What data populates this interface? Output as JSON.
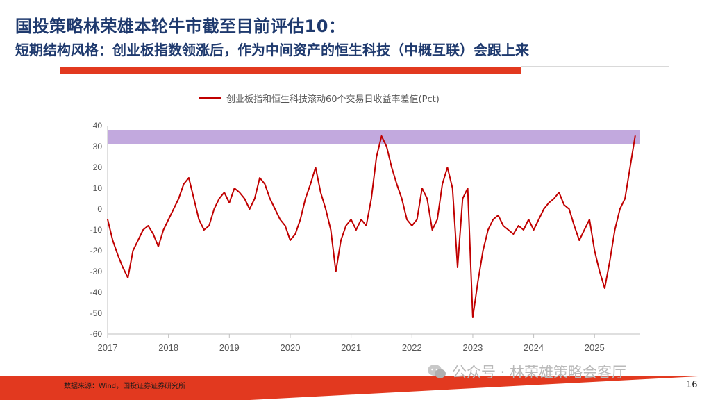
{
  "title": {
    "line1": "国投策略林荣雄本轮牛市截至目前评估10：",
    "line2": "短期结构风格：创业板指数领涨后，作为中间资产的恒生科技（中概互联）会跟上来"
  },
  "colors": {
    "series": "#c00000",
    "band": "#b79ad8",
    "accent": "#e2391f",
    "title": "#1f3a6e"
  },
  "chart_data": {
    "type": "line",
    "series": [
      {
        "name": "创业板指和恒生科技滚动60个交易日收益率差值(Pct)",
        "x": [
          "2017-01",
          "2017-02",
          "2017-03",
          "2017-04",
          "2017-05",
          "2017-06",
          "2017-07",
          "2017-08",
          "2017-09",
          "2017-10",
          "2017-11",
          "2017-12",
          "2018-01",
          "2018-02",
          "2018-03",
          "2018-04",
          "2018-05",
          "2018-06",
          "2018-07",
          "2018-08",
          "2018-09",
          "2018-10",
          "2018-11",
          "2018-12",
          "2019-01",
          "2019-02",
          "2019-03",
          "2019-04",
          "2019-05",
          "2019-06",
          "2019-07",
          "2019-08",
          "2019-09",
          "2019-10",
          "2019-11",
          "2019-12",
          "2020-01",
          "2020-02",
          "2020-03",
          "2020-04",
          "2020-05",
          "2020-06",
          "2020-07",
          "2020-08",
          "2020-09",
          "2020-10",
          "2020-11",
          "2020-12",
          "2021-01",
          "2021-02",
          "2021-03",
          "2021-04",
          "2021-05",
          "2021-06",
          "2021-07",
          "2021-08",
          "2021-09",
          "2021-10",
          "2021-11",
          "2021-12",
          "2022-01",
          "2022-02",
          "2022-03",
          "2022-04",
          "2022-05",
          "2022-06",
          "2022-07",
          "2022-08",
          "2022-09",
          "2022-10",
          "2022-11",
          "2022-12",
          "2023-01",
          "2023-02",
          "2023-03",
          "2023-04",
          "2023-05",
          "2023-06",
          "2023-07",
          "2023-08",
          "2023-09",
          "2023-10",
          "2023-11",
          "2023-12",
          "2024-01",
          "2024-02",
          "2024-03",
          "2024-04",
          "2024-05",
          "2024-06",
          "2024-07",
          "2024-08",
          "2024-09",
          "2024-10",
          "2024-11",
          "2024-12",
          "2025-01",
          "2025-02",
          "2025-03",
          "2025-04",
          "2025-05",
          "2025-06",
          "2025-07",
          "2025-08",
          "2025-09"
        ],
        "values": [
          -5,
          -15,
          -22,
          -28,
          -33,
          -20,
          -15,
          -10,
          -8,
          -12,
          -18,
          -10,
          -5,
          0,
          5,
          12,
          15,
          5,
          -5,
          -10,
          -8,
          0,
          5,
          8,
          3,
          10,
          8,
          5,
          0,
          5,
          15,
          12,
          5,
          0,
          -5,
          -8,
          -15,
          -12,
          -5,
          5,
          12,
          20,
          8,
          0,
          -10,
          -30,
          -15,
          -8,
          -5,
          -10,
          -5,
          -8,
          5,
          25,
          35,
          30,
          20,
          12,
          5,
          -5,
          -8,
          -5,
          10,
          5,
          -10,
          -5,
          12,
          20,
          10,
          -28,
          5,
          10,
          -52,
          -35,
          -20,
          -10,
          -5,
          -3,
          -8,
          -10,
          -12,
          -8,
          -10,
          -5,
          -10,
          -5,
          0,
          3,
          5,
          8,
          2,
          0,
          -8,
          -15,
          -10,
          -5,
          -20,
          -30,
          -38,
          -25,
          -10,
          0,
          5,
          20,
          35
        ]
      }
    ],
    "xlabel": "",
    "ylabel": "",
    "x_ticks": [
      "2017",
      "2018",
      "2019",
      "2020",
      "2021",
      "2022",
      "2023",
      "2024",
      "2025"
    ],
    "y_ticks": [
      40,
      30,
      20,
      10,
      0,
      -10,
      -20,
      -30,
      -40,
      -50,
      -60
    ],
    "ylim": [
      -60,
      40
    ],
    "xlim": [
      "2017-01",
      "2025-09"
    ],
    "grid": false,
    "legend": "top",
    "highlight_band": [
      31,
      38
    ]
  },
  "footer": {
    "source": "数据来源：Wind，国投证券证券研究所",
    "watermark": "公众号 · 林荣雄策略会客厅",
    "page": "16"
  }
}
